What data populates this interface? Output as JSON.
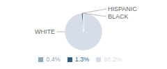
{
  "chart_data": {
    "type": "pie",
    "categories": [
      "WHITE",
      "HISPANIC",
      "BLACK"
    ],
    "values": [
      98.2,
      1.3,
      0.4
    ],
    "value_labels": [
      "98.2%",
      "1.3%",
      "0.4%"
    ],
    "colors": [
      "#d6dde8",
      "#2d5f8a",
      "#8fa8c0"
    ],
    "legend": "bottom"
  }
}
